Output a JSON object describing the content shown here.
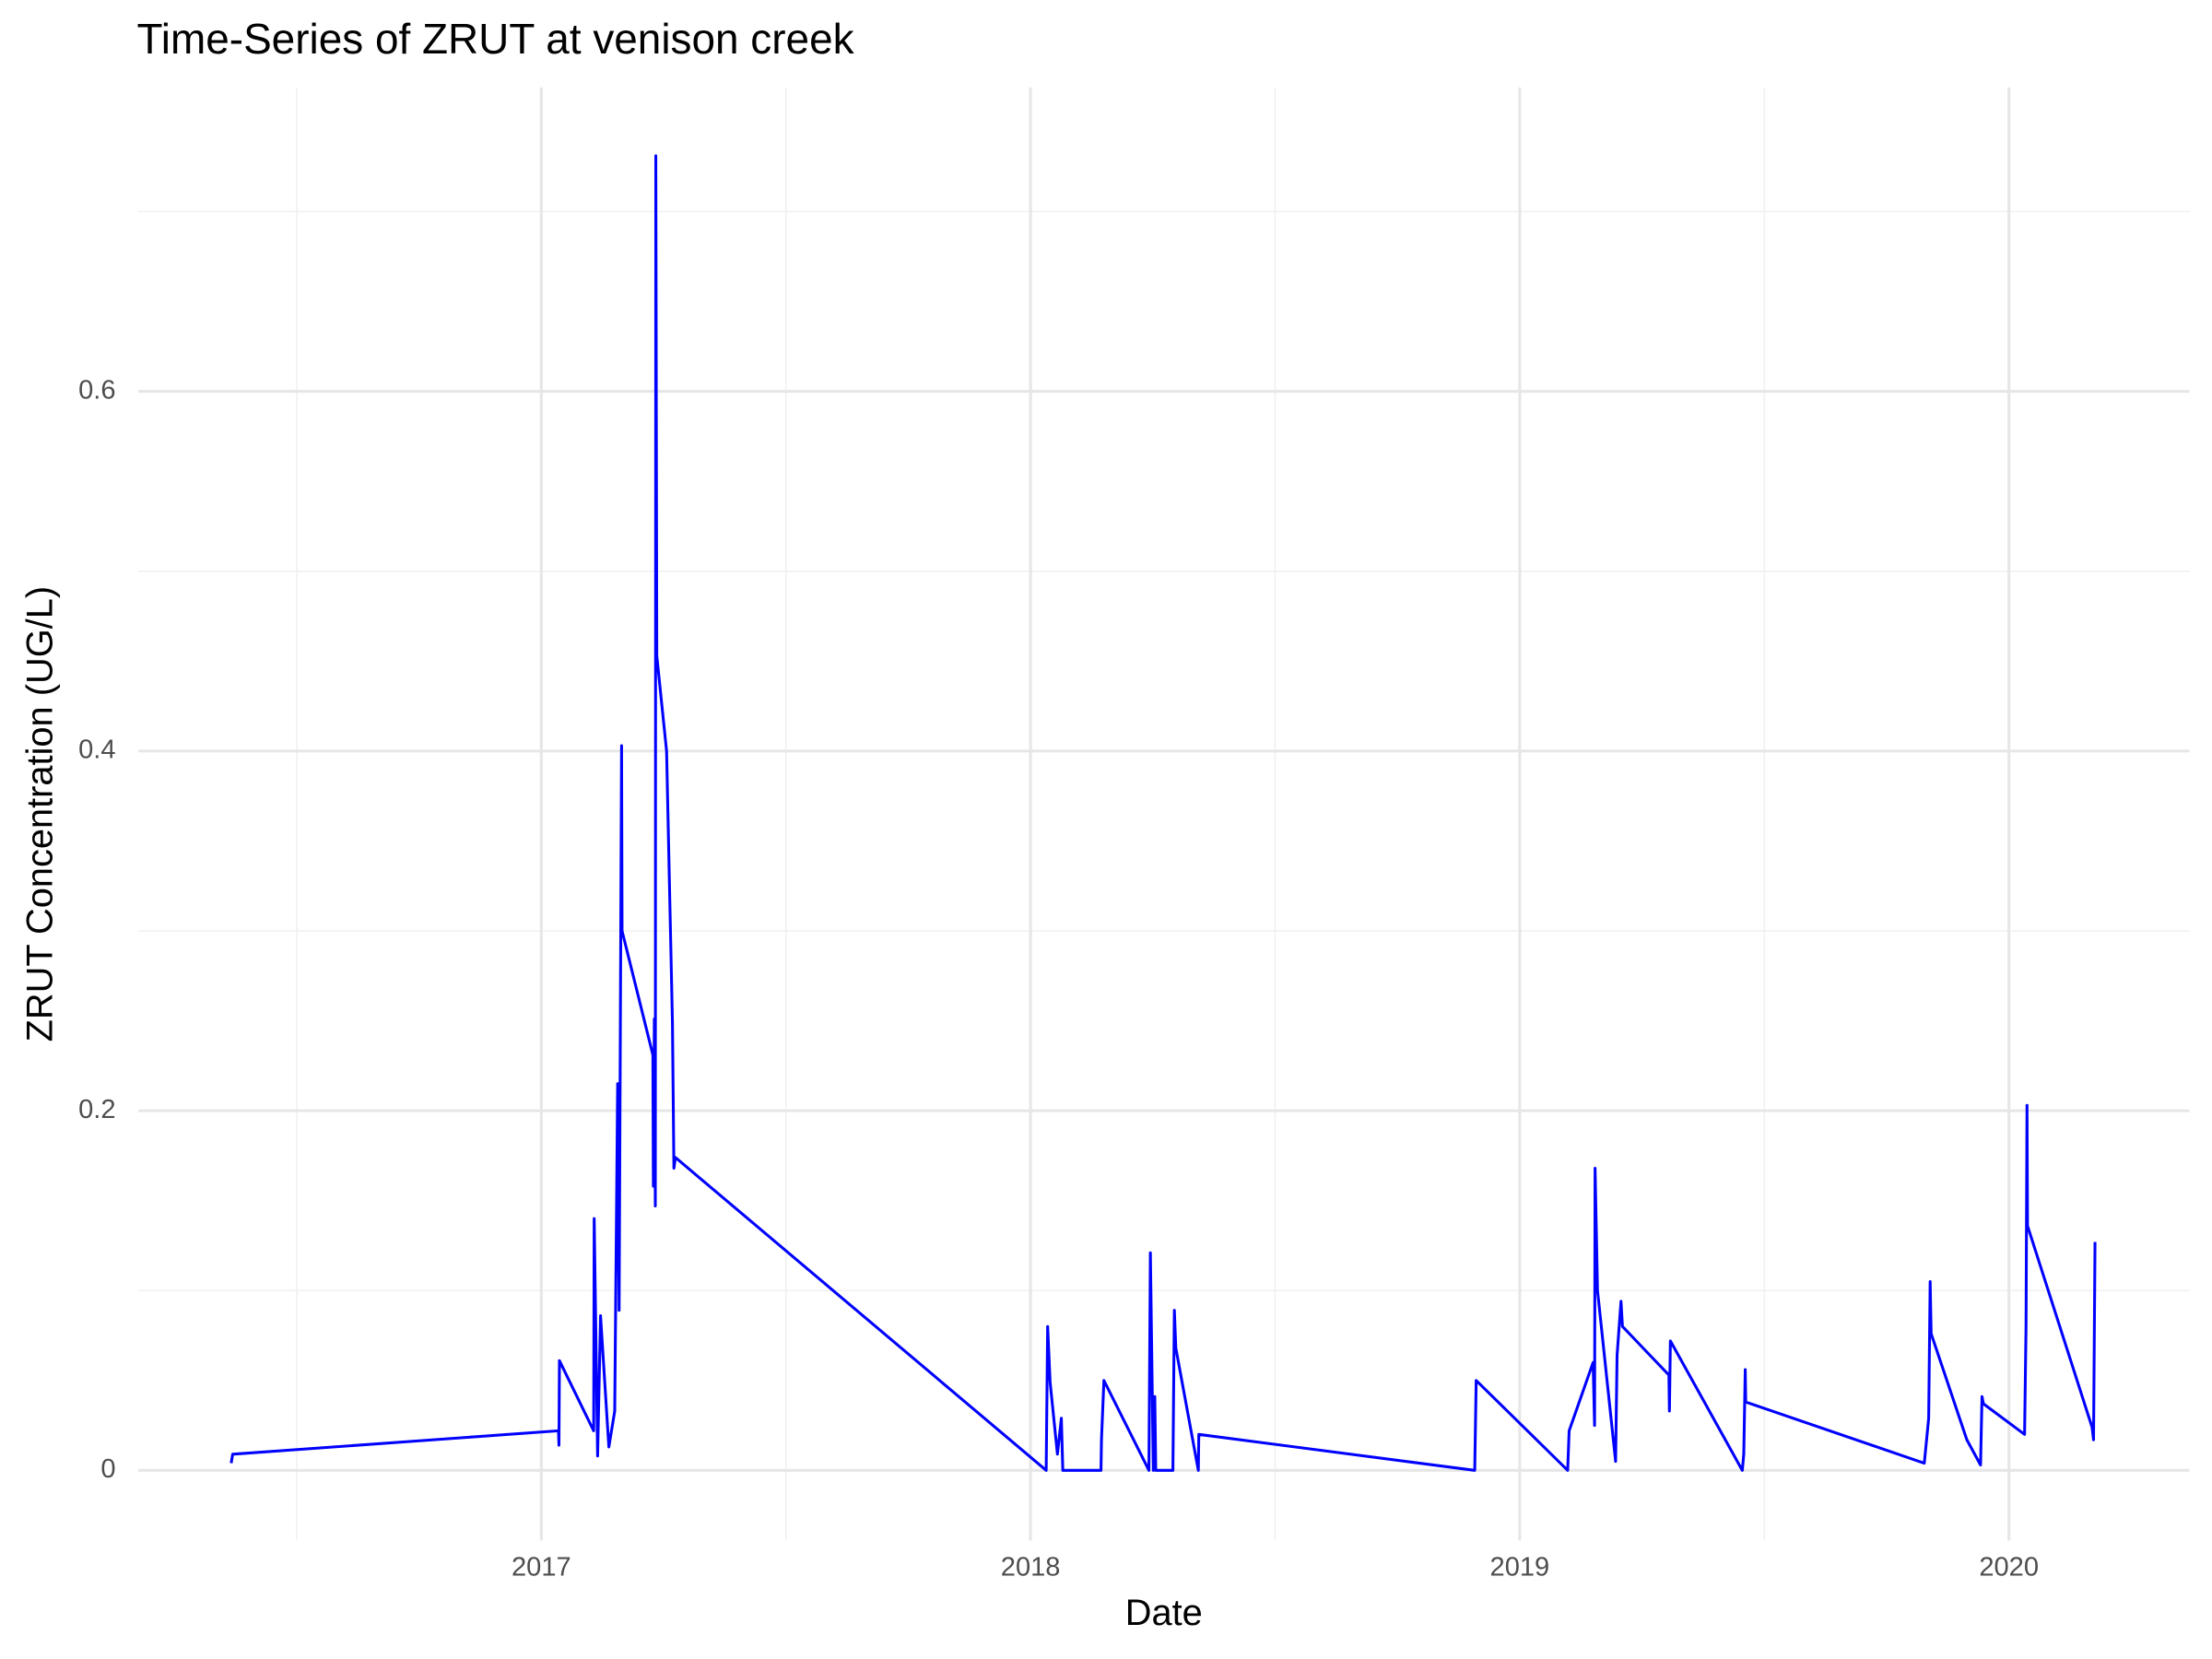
{
  "chart_data": {
    "type": "line",
    "title": "Time-Series of ZRUT at venison creek",
    "x_label": "Date",
    "y_label": "ZRUT Concentration (UG/L)",
    "xlim": [
      2016.176,
      2020.369
    ],
    "ylim": [
      -0.039,
      0.769
    ],
    "xticks": [
      2017,
      2018,
      2019,
      2020
    ],
    "yticks": [
      0.0,
      0.2,
      0.4,
      0.6
    ],
    "minor_xticks": [
      2016.5,
      2017.5,
      2018.5,
      2019.5
    ],
    "minor_yticks": [
      0.1,
      0.3,
      0.5,
      0.7
    ],
    "grid": true,
    "series": [
      {
        "name": "ZRUT",
        "color": "#0000ff",
        "x": [
          2016.366,
          2016.369,
          2017.035,
          2017.036,
          2017.037,
          2017.107,
          2017.108,
          2017.115,
          2017.121,
          2017.138,
          2017.15,
          2017.156,
          2017.159,
          2017.164,
          2017.165,
          2017.228,
          2017.229,
          2017.231,
          2017.233,
          2017.234,
          2017.236,
          2017.256,
          2017.268,
          2017.271,
          2017.274,
          2018.032,
          2018.035,
          2018.04,
          2018.055,
          2018.063,
          2018.066,
          2018.144,
          2018.145,
          2018.15,
          2018.242,
          2018.245,
          2018.251,
          2018.254,
          2018.256,
          2018.291,
          2018.294,
          2018.297,
          2018.343,
          2018.344,
          2018.908,
          2018.911,
          2019.098,
          2019.101,
          2019.15,
          2019.153,
          2019.154,
          2019.159,
          2019.196,
          2019.199,
          2019.207,
          2019.21,
          2019.305,
          2019.306,
          2019.308,
          2019.455,
          2019.458,
          2019.461,
          2019.462,
          2019.827,
          2019.836,
          2019.839,
          2019.841,
          2019.914,
          2019.942,
          2019.945,
          2019.948,
          2020.032,
          2020.035,
          2020.037,
          2020.038,
          2020.17,
          2020.173,
          2020.176
        ],
        "values": [
          0.004,
          0.009,
          0.022,
          0.014,
          0.061,
          0.022,
          0.14,
          0.008,
          0.086,
          0.013,
          0.033,
          0.215,
          0.089,
          0.403,
          0.3,
          0.231,
          0.158,
          0.251,
          0.147,
          0.731,
          0.453,
          0.4,
          0.249,
          0.168,
          0.174,
          0.0,
          0.08,
          0.049,
          0.009,
          0.029,
          0.0,
          0.0,
          0.017,
          0.05,
          0.0,
          0.121,
          0.0,
          0.041,
          0.0,
          0.0,
          0.089,
          0.068,
          0.0,
          0.02,
          0.0,
          0.05,
          0.0,
          0.022,
          0.06,
          0.025,
          0.168,
          0.1,
          0.005,
          0.064,
          0.094,
          0.08,
          0.053,
          0.033,
          0.072,
          0.0,
          0.009,
          0.056,
          0.038,
          0.004,
          0.029,
          0.105,
          0.076,
          0.017,
          0.003,
          0.041,
          0.037,
          0.02,
          0.08,
          0.203,
          0.136,
          0.024,
          0.017,
          0.127
        ]
      }
    ]
  }
}
